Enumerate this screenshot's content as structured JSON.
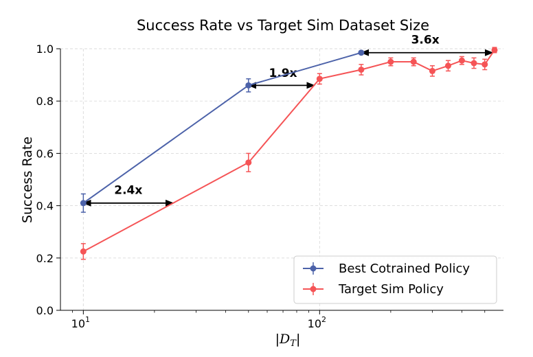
{
  "chart_data": {
    "type": "line",
    "title": "Success Rate vs Target Sim Dataset Size",
    "xlabel": "|D_T|",
    "xlabel_script": "D",
    "xlabel_sub": "T",
    "ylabel": "Success Rate",
    "xscale": "log",
    "xlim": [
      8,
      600
    ],
    "ylim": [
      0.0,
      1.0
    ],
    "grid": true,
    "x_ticks": [
      {
        "value": 10,
        "base": "10",
        "exp": "1"
      },
      {
        "value": 100,
        "base": "10",
        "exp": "2"
      }
    ],
    "y_ticks": [
      {
        "value": 0.0,
        "label": "0.0"
      },
      {
        "value": 0.2,
        "label": "0.2"
      },
      {
        "value": 0.4,
        "label": "0.4"
      },
      {
        "value": 0.6,
        "label": "0.6"
      },
      {
        "value": 0.8,
        "label": "0.8"
      },
      {
        "value": 1.0,
        "label": "1.0"
      }
    ],
    "legend_position": "bottom-right",
    "series": [
      {
        "name": "Best Cotrained Policy",
        "color": "#4c62a9",
        "x": [
          10,
          50,
          150
        ],
        "y": [
          0.41,
          0.86,
          0.985
        ],
        "err": [
          0.035,
          0.025,
          0.0
        ]
      },
      {
        "name": "Target Sim Policy",
        "color": "#f55456",
        "x": [
          10,
          50,
          100,
          150,
          200,
          250,
          300,
          350,
          400,
          450,
          500,
          550
        ],
        "y": [
          0.225,
          0.565,
          0.885,
          0.92,
          0.95,
          0.95,
          0.915,
          0.935,
          0.955,
          0.945,
          0.94,
          0.995
        ],
        "err": [
          0.03,
          0.035,
          0.02,
          0.02,
          0.015,
          0.015,
          0.02,
          0.02,
          0.015,
          0.02,
          0.02,
          0.01
        ]
      }
    ],
    "annotations": [
      {
        "text": "2.4x",
        "x_start": 10,
        "x_end": 24,
        "y": 0.41,
        "label_x": 15.5,
        "label_y": 0.445
      },
      {
        "text": "1.9x",
        "x_start": 50,
        "x_end": 95,
        "y": 0.86,
        "label_x": 70,
        "label_y": 0.893
      },
      {
        "text": "3.6x",
        "x_start": 150,
        "x_end": 540,
        "y": 0.985,
        "label_x": 280,
        "label_y": 1.02
      }
    ]
  }
}
